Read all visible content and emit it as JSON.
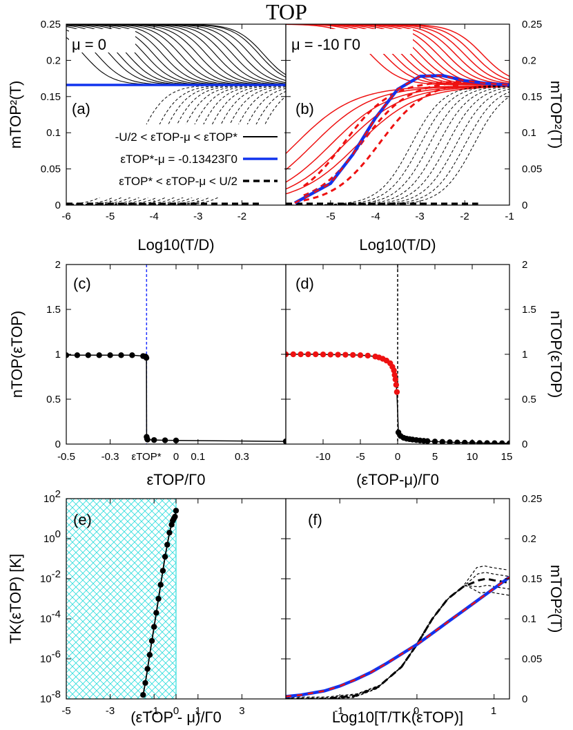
{
  "figure_title": "TOP",
  "colors": {
    "black": "#000000",
    "red": "#ee1111",
    "blue": "#1133ee",
    "dashed_blue": "#2233ff",
    "hatch": "#33dddd"
  },
  "chart_data": [
    {
      "id": "a",
      "type": "line",
      "panel_label": "(a)",
      "annotation": "μ = 0",
      "xlabel": "Log10(T/D)",
      "ylabel": "mTOP²(T)",
      "xlim": [
        -6,
        -1
      ],
      "ylim": [
        0,
        0.25
      ],
      "xticks": [
        "-6",
        "-5",
        "-4",
        "-3",
        "-2"
      ],
      "yticks": [
        "0",
        "0.05",
        "0.1",
        "0.15",
        "0.2",
        "0.25"
      ],
      "legend": {
        "placement": "bottom-right",
        "entries": [
          {
            "label": "-U/2 < εTOP-μ < εTOP*",
            "style": "solid-black"
          },
          {
            "label": "εTOP*-μ = -0.13423Γ0",
            "style": "solid-blue"
          },
          {
            "label": "εTOP* < εTOP-μ < U/2",
            "style": "dashed-black"
          }
        ]
      },
      "series": [
        {
          "name": "solid family (plateau 0.25, crossover spread)",
          "crossover_log10T": [
            -5.6,
            -5.3,
            -5.0,
            -4.8,
            -4.6,
            -4.4,
            -4.2,
            -4.0,
            -3.8,
            -3.6,
            -3.4,
            -3.2,
            -3.0,
            -2.8,
            -2.6,
            -2.4,
            -2.2,
            -2.0,
            -1.8,
            -1.6,
            -1.5
          ],
          "high_T_value": 0.166
        },
        {
          "name": "critical (blue)",
          "value": 0.166
        },
        {
          "name": "dashed family (rise from 0 to 0.166)",
          "crossover_log10T": [
            -4.4,
            -4.1,
            -3.9,
            -3.7,
            -3.5,
            -3.3,
            -3.1,
            -2.9,
            -2.7,
            -2.5,
            -2.3,
            -2.1,
            -1.9,
            -1.7
          ]
        }
      ]
    },
    {
      "id": "b",
      "type": "line",
      "panel_label": "(b)",
      "annotation": "μ = -10 Γ0",
      "xlabel": "Log10(T/D)",
      "ylabel": "mTOP²(T)",
      "xlim": [
        -6,
        -1
      ],
      "ylim": [
        0,
        0.25
      ],
      "xticks": [
        "-5",
        "-4",
        "-3",
        "-2",
        "-1"
      ],
      "yticks": [
        "0",
        "0.05",
        "0.1",
        "0.15",
        "0.2",
        "0.25"
      ],
      "series": [
        {
          "name": "red solid family",
          "crossover_log10T": [
            -5.8,
            -5.4,
            -5.0,
            -4.7,
            -4.4,
            -4.1,
            -3.8,
            -3.6,
            -3.4,
            -3.2,
            -3.0,
            -2.8,
            -2.6,
            -2.4,
            -2.2,
            -2.0,
            -1.8,
            -1.6
          ],
          "high_T_value": 0.166
        },
        {
          "name": "critical blue/red dashed",
          "points": [
            [
              -5.8,
              0.003
            ],
            [
              -5.0,
              0.03
            ],
            [
              -4.5,
              0.07
            ],
            [
              -4.0,
              0.12
            ],
            [
              -3.5,
              0.16
            ],
            [
              -3.0,
              0.178
            ],
            [
              -2.5,
              0.179
            ],
            [
              -2.0,
              0.172
            ],
            [
              -1.5,
              0.168
            ],
            [
              -1.0,
              0.166
            ]
          ]
        },
        {
          "name": "red dashed family",
          "midpoints_log10T": [
            -3.9,
            -4.3,
            -4.7
          ]
        },
        {
          "name": "black dashed family",
          "crossover_log10T": [
            -3.2,
            -3.0,
            -2.8,
            -2.6,
            -2.4,
            -2.2,
            -2.0,
            -1.8
          ]
        }
      ]
    },
    {
      "id": "c",
      "type": "line",
      "panel_label": "(c)",
      "xlabel": "εTOP/Γ0",
      "ylabel": "nTOP(εTOP)",
      "xlim": [
        -0.5,
        0.5
      ],
      "ylim": [
        0,
        2
      ],
      "xticks": [
        "-0.5",
        "-0.3",
        "εTOP*",
        "0",
        "0.1",
        "0.3"
      ],
      "yticks": [
        "0",
        "0.5",
        "1",
        "1.5",
        "2"
      ],
      "vline": -0.13423,
      "series": [
        {
          "name": "nTOP",
          "x": [
            -0.5,
            -0.45,
            -0.4,
            -0.35,
            -0.3,
            -0.25,
            -0.2,
            -0.15,
            -0.14,
            -0.137,
            -0.135,
            -0.134,
            -0.132,
            -0.13,
            -0.1,
            -0.05,
            0.0,
            0.5
          ],
          "y": [
            0.99,
            0.99,
            0.99,
            0.99,
            0.99,
            0.99,
            0.99,
            0.98,
            0.975,
            0.97,
            0.96,
            0.08,
            0.06,
            0.05,
            0.045,
            0.042,
            0.04,
            0.03
          ]
        }
      ]
    },
    {
      "id": "d",
      "type": "line",
      "panel_label": "(d)",
      "xlabel": "(εTOP-μ)/Γ0",
      "ylabel": "nTOP(εTOP)",
      "xlim": [
        -15,
        15
      ],
      "ylim": [
        0,
        2
      ],
      "xticks": [
        "-10",
        "-5",
        "0",
        "5",
        "10",
        "15"
      ],
      "yticks": [
        "0",
        "0.5",
        "1",
        "1.5",
        "2"
      ],
      "vline": 0,
      "series": [
        {
          "name": "red (εTOP-μ < 0)",
          "x": [
            -15,
            -14,
            -13,
            -12,
            -11,
            -10,
            -9,
            -8,
            -7,
            -6,
            -5,
            -4,
            -3,
            -2.5,
            -2,
            -1.5,
            -1,
            -0.7,
            -0.5,
            -0.4,
            -0.3,
            -0.2,
            -0.1
          ],
          "y": [
            1.0,
            1.0,
            1.0,
            1.0,
            1.0,
            0.998,
            0.997,
            0.996,
            0.995,
            0.993,
            0.99,
            0.985,
            0.975,
            0.965,
            0.95,
            0.93,
            0.9,
            0.86,
            0.82,
            0.77,
            0.72,
            0.66,
            0.58
          ]
        },
        {
          "name": "black (εTOP-μ > 0)",
          "x": [
            0.1,
            0.4,
            0.8,
            1.2,
            1.6,
            2,
            2.5,
            3,
            3.5,
            4,
            5,
            6,
            7,
            8,
            9,
            10,
            11,
            12,
            13,
            14,
            15
          ],
          "y": [
            0.13,
            0.09,
            0.07,
            0.06,
            0.055,
            0.05,
            0.045,
            0.04,
            0.036,
            0.033,
            0.028,
            0.024,
            0.021,
            0.018,
            0.016,
            0.014,
            0.012,
            0.011,
            0.01,
            0.009,
            0.008
          ]
        }
      ]
    },
    {
      "id": "e",
      "type": "line",
      "panel_label": "(e)",
      "xlabel": "(εTOP - μ)/Γ0",
      "ylabel": "TK(εTOP) [K]",
      "xlim": [
        -5,
        5
      ],
      "ylim_log10": [
        -8,
        2
      ],
      "xticks": [
        "-5",
        "-3",
        "-1",
        "0",
        "1",
        "3"
      ],
      "yticks": [
        "10-8",
        "10-6",
        "10-4",
        "10-2",
        "100",
        "102"
      ],
      "shaded_region": [
        -5,
        0
      ],
      "series": [
        {
          "name": "TK",
          "x": [
            -1.5,
            -1.4,
            -1.3,
            -1.2,
            -1.1,
            -1.0,
            -0.9,
            -0.8,
            -0.7,
            -0.6,
            -0.5,
            -0.4,
            -0.3,
            -0.2,
            -0.15,
            -0.1,
            -0.05,
            0.0
          ],
          "log10y": [
            -7.8,
            -7.2,
            -6.5,
            -5.8,
            -5.1,
            -4.4,
            -3.7,
            -3.0,
            -2.3,
            -1.6,
            -0.9,
            -0.3,
            0.3,
            0.7,
            0.9,
            1.0,
            1.1,
            1.4
          ]
        }
      ]
    },
    {
      "id": "f",
      "type": "line",
      "panel_label": "(f)",
      "xlabel": "Log10[T/TK(εTOP)]",
      "ylabel": "mTOP²(T)",
      "xlim": [
        -1.7,
        1.2
      ],
      "ylim": [
        0,
        0.25
      ],
      "xticks": [
        "-1",
        "0",
        "1"
      ],
      "yticks": [
        "0",
        "0.05",
        "0.1",
        "0.15",
        "0.2",
        "0.25"
      ],
      "series": [
        {
          "name": "universal (blue/red)",
          "x": [
            -1.7,
            -1.5,
            -1.2,
            -1.0,
            -0.8,
            -0.6,
            -0.4,
            -0.2,
            0.0,
            0.2,
            0.4,
            0.6,
            0.8,
            1.0,
            1.2
          ],
          "y": [
            0.003,
            0.005,
            0.01,
            0.016,
            0.024,
            0.033,
            0.044,
            0.056,
            0.068,
            0.082,
            0.096,
            0.11,
            0.124,
            0.138,
            0.152
          ]
        },
        {
          "name": "black dashed family",
          "x": [
            -1.7,
            -1.2,
            -0.8,
            -0.5,
            -0.2,
            0.0,
            0.2,
            0.4,
            0.6,
            0.8,
            0.9,
            1.0,
            1.2
          ],
          "y": [
            0.0,
            0.0,
            0.004,
            0.015,
            0.04,
            0.068,
            0.1,
            0.125,
            0.14,
            0.148,
            0.15,
            0.148,
            0.145
          ]
        }
      ]
    }
  ]
}
